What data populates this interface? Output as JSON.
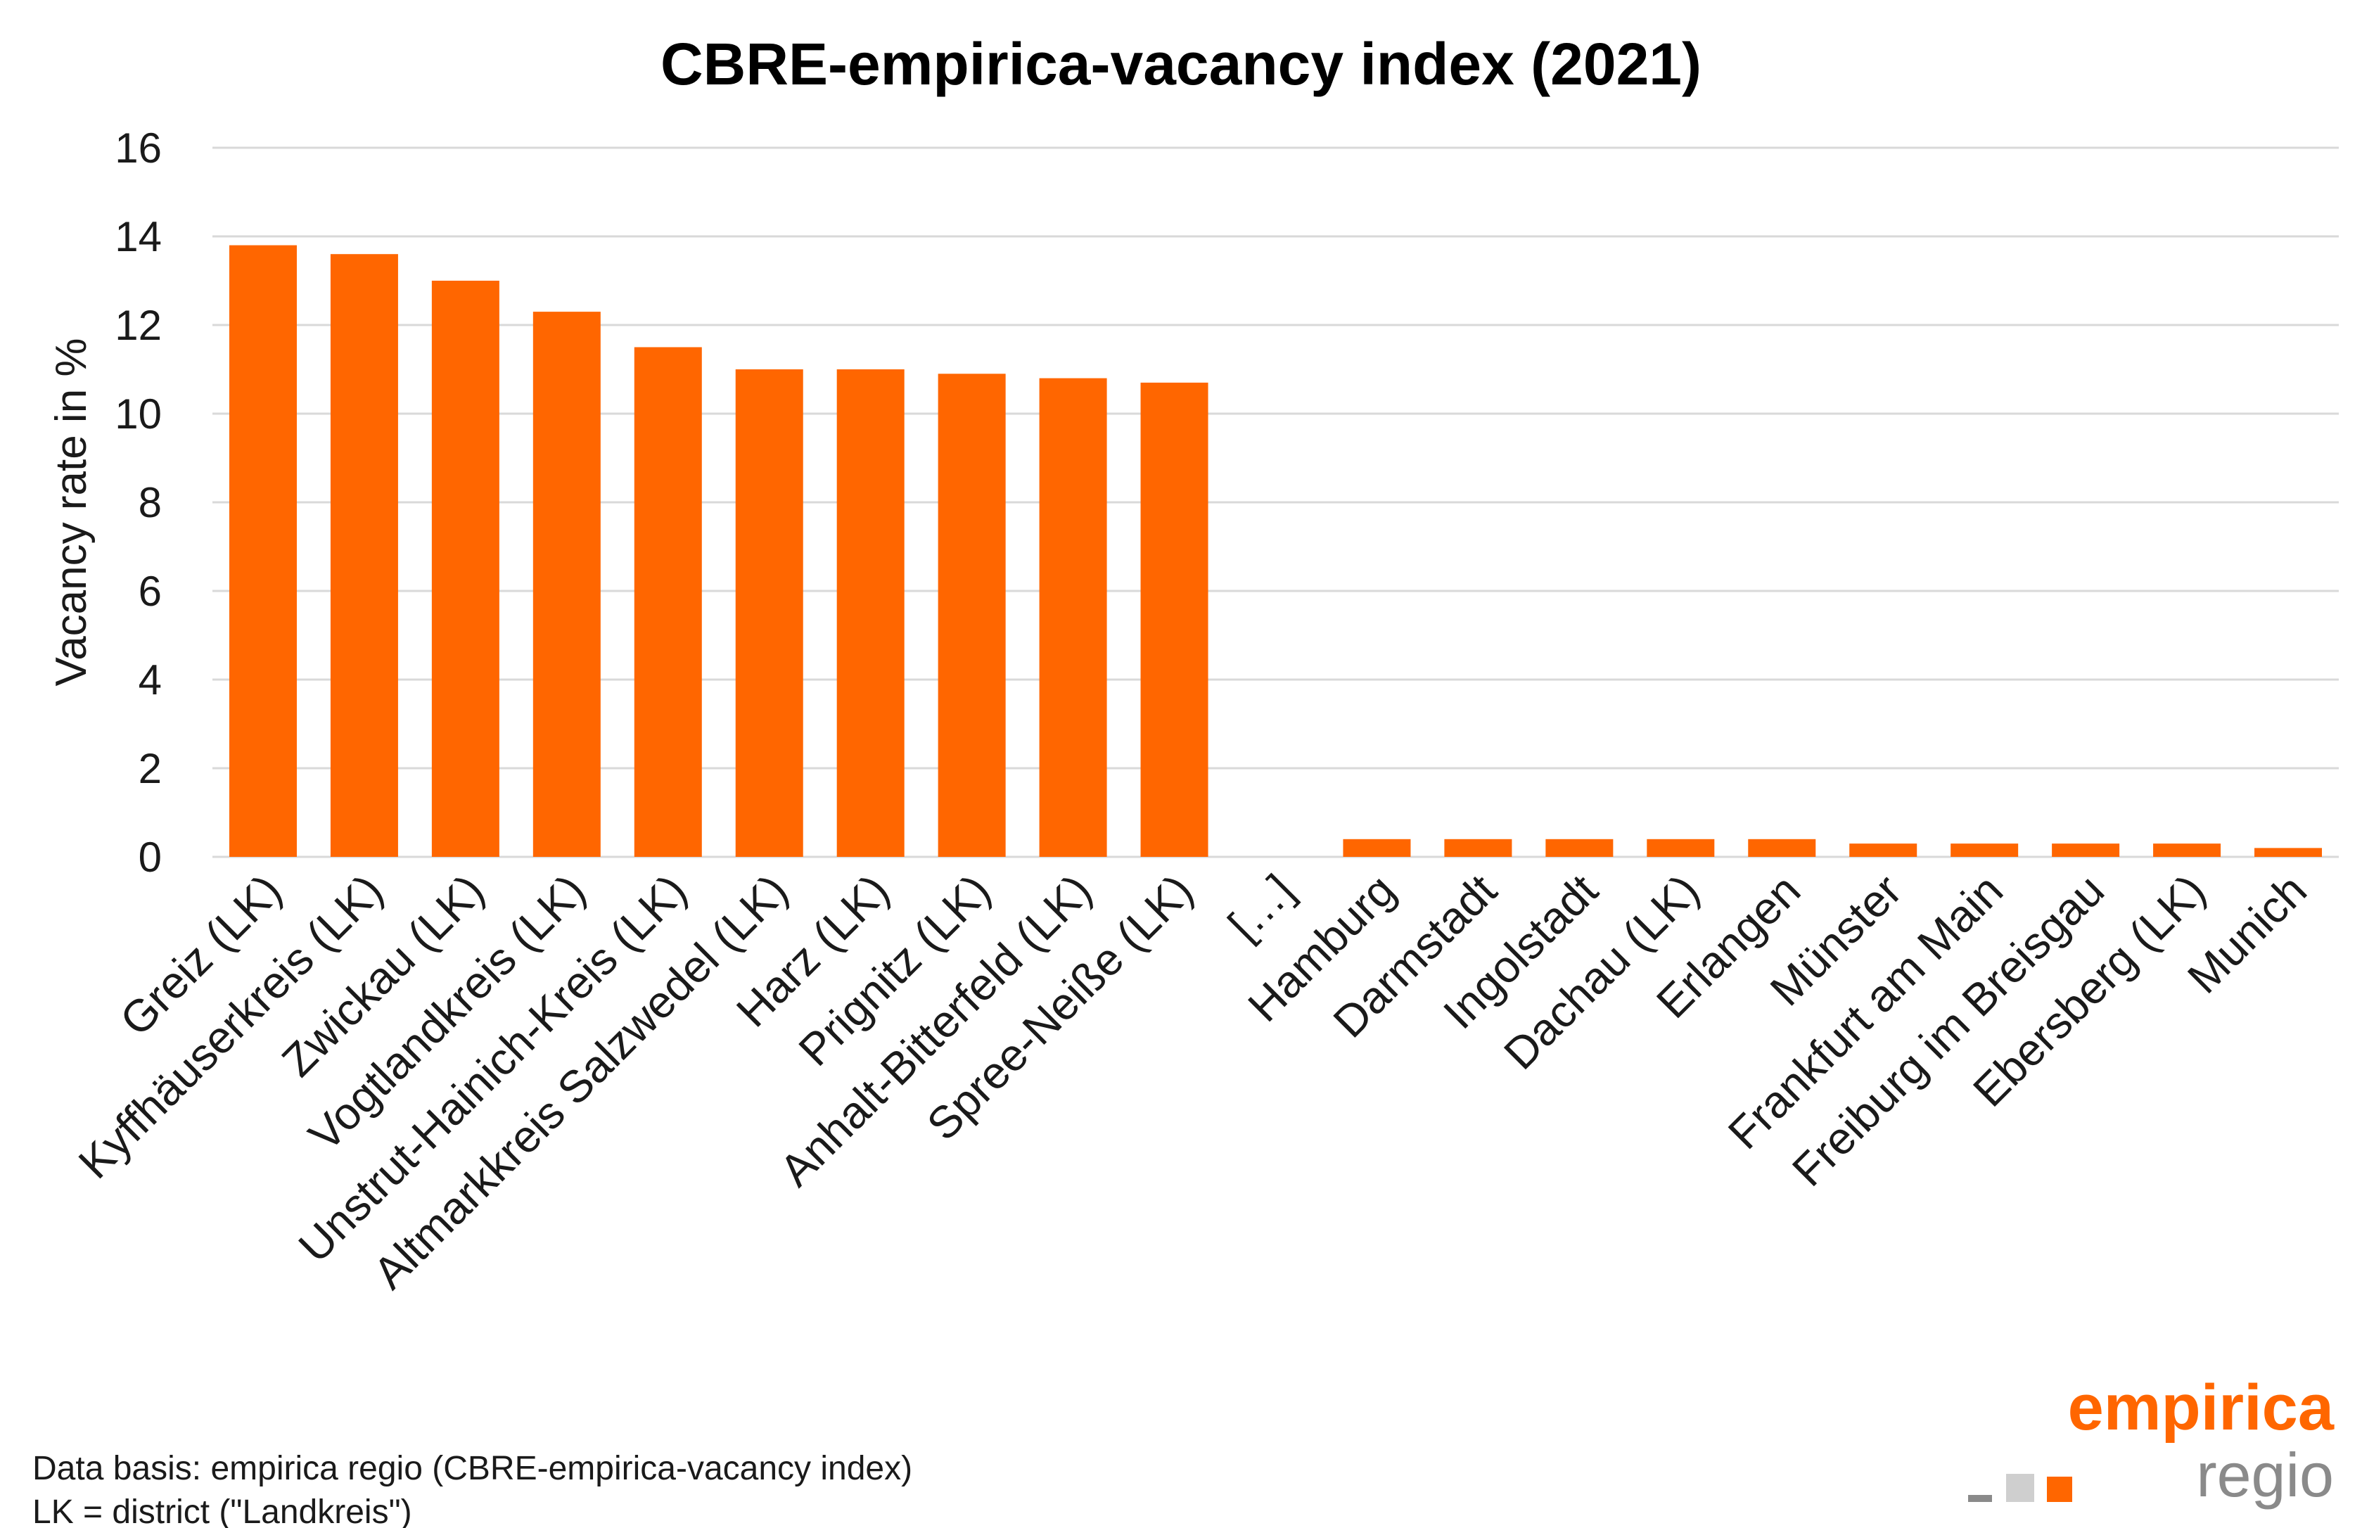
{
  "colors": {
    "bar": "#ff6600",
    "grid": "#d9d9d9",
    "logo_orange": "#ff6600",
    "logo_gray": "#8a8a8a",
    "logo_light_gray": "#cfcfcf"
  },
  "footnotes": {
    "data_basis": "Data basis: empirica regio (CBRE-empirica-vacancy index)",
    "lk_note": "LK = district (\"Landkreis\")"
  },
  "logo": {
    "word": "empirica",
    "sub": "regio"
  },
  "chart_data": {
    "type": "bar",
    "title": "CBRE-empirica-vacancy index (2021)",
    "xlabel": "",
    "ylabel": "Vacancy rate in %",
    "ylim": [
      0,
      16
    ],
    "yticks": [
      0,
      2,
      4,
      6,
      8,
      10,
      12,
      14,
      16
    ],
    "grid": true,
    "legend": "none",
    "categories": [
      "Greiz (LK)",
      "Kyffhäuserkreis (LK)",
      "Zwickau (LK)",
      "Vogtlandkreis (LK)",
      "Unstrut-Hainich-Kreis (LK)",
      "Altmarkkreis Salzwedel (LK)",
      "Harz (LK)",
      "Prignitz (LK)",
      "Anhalt-Bitterfeld (LK)",
      "Spree-Neiße (LK)",
      "[…]",
      "Hamburg",
      "Darmstadt",
      "Ingolstadt",
      "Dachau (LK)",
      "Erlangen",
      "Münster",
      "Frankfurt am Main",
      "Freiburg im Breisgau",
      "Ebersberg (LK)",
      "Munich"
    ],
    "values": [
      13.8,
      13.6,
      13.0,
      12.3,
      11.5,
      11.0,
      11.0,
      10.9,
      10.8,
      10.7,
      null,
      0.4,
      0.4,
      0.4,
      0.4,
      0.4,
      0.3,
      0.3,
      0.3,
      0.3,
      0.2
    ]
  }
}
